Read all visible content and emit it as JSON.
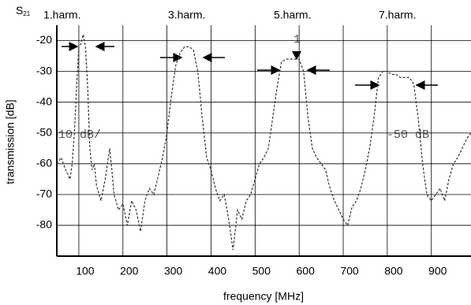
{
  "chart_data": {
    "type": "line",
    "y_symbol": "S",
    "y_symbol_sub": "21",
    "xlabel": "frequency [MHz]",
    "ylabel": "transmission [dB]",
    "annotations": [
      "1.harm.",
      "3.harm.",
      "5.harm.",
      "7.harm.",
      "10 dB/",
      "-50 dB",
      "1"
    ],
    "xlim": [
      50,
      990
    ],
    "ylim": [
      -90,
      -15
    ],
    "xticks": [
      100,
      200,
      300,
      400,
      500,
      600,
      700,
      800,
      900
    ],
    "yticks": [
      -20,
      -30,
      -40,
      -50,
      -60,
      -70,
      -80
    ],
    "grid": true,
    "series": [
      {
        "name": "S21",
        "color": "#333333",
        "x": [
          50,
          60,
          70,
          80,
          85,
          90,
          95,
          100,
          105,
          110,
          115,
          120,
          125,
          130,
          135,
          140,
          150,
          160,
          170,
          175,
          180,
          190,
          200,
          210,
          220,
          230,
          240,
          250,
          260,
          270,
          280,
          290,
          300,
          310,
          320,
          330,
          340,
          350,
          360,
          370,
          380,
          390,
          400,
          410,
          420,
          430,
          440,
          450,
          460,
          470,
          480,
          490,
          500,
          510,
          520,
          530,
          540,
          550,
          560,
          570,
          580,
          590,
          600,
          610,
          620,
          630,
          640,
          650,
          660,
          670,
          680,
          690,
          700,
          710,
          720,
          730,
          740,
          750,
          760,
          770,
          780,
          790,
          800,
          810,
          820,
          830,
          840,
          850,
          860,
          870,
          880,
          890,
          900,
          910,
          920,
          930,
          940,
          950,
          960,
          970,
          980,
          990
        ],
        "values": [
          -60,
          -58,
          -62,
          -65,
          -60,
          -50,
          -35,
          -22,
          -21,
          -18,
          -22,
          -35,
          -55,
          -62,
          -60,
          -67,
          -72,
          -65,
          -55,
          -62,
          -70,
          -75,
          -73,
          -80,
          -72,
          -75,
          -82,
          -72,
          -68,
          -70,
          -64,
          -58,
          -50,
          -38,
          -28,
          -24,
          -22,
          -22,
          -23,
          -30,
          -45,
          -58,
          -62,
          -68,
          -72,
          -70,
          -78,
          -88,
          -75,
          -78,
          -72,
          -70,
          -65,
          -60,
          -58,
          -55,
          -45,
          -35,
          -27,
          -26,
          -26,
          -26,
          -26,
          -30,
          -45,
          -55,
          -58,
          -60,
          -62,
          -68,
          -72,
          -75,
          -78,
          -80,
          -74,
          -72,
          -68,
          -62,
          -55,
          -45,
          -32,
          -30,
          -30,
          -31,
          -31,
          -32,
          -32,
          -32,
          -34,
          -45,
          -60,
          -70,
          -72,
          -70,
          -68,
          -72,
          -65,
          -60,
          -58,
          -55,
          -52,
          -50
        ]
      }
    ]
  }
}
